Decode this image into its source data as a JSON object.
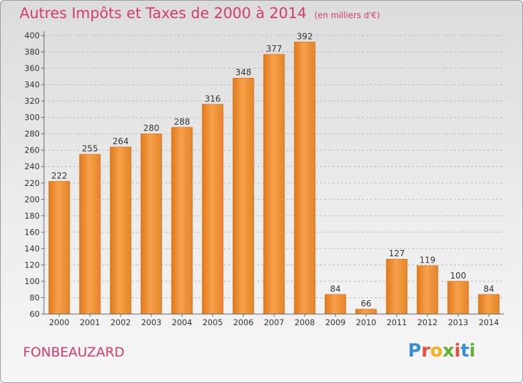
{
  "header": {
    "title": "Autres Impôts et Taxes de 2000 à 2014",
    "subtitle": "(en milliers d'€)"
  },
  "footer": {
    "commune": "FONBEAUZARD",
    "logo_text": "Proxiti",
    "logo_colors": [
      "#3a8fd4",
      "#e94b3c",
      "#f4b11a",
      "#62b033",
      "#e94b3c",
      "#3a8fd4",
      "#62b033"
    ]
  },
  "colors": {
    "bar_light": "#f7a04a",
    "bar_dark": "#df7a1f",
    "bar_stroke": "#cc6a12",
    "axis": "#666666",
    "grid": "#bbbbbb",
    "title": "#d53a6e"
  },
  "chart_data": {
    "type": "bar",
    "title": "Autres Impôts et Taxes de 2000 à 2014",
    "subtitle": "(en milliers d'€)",
    "xlabel": "",
    "ylabel": "",
    "categories": [
      "2000",
      "2001",
      "2002",
      "2003",
      "2004",
      "2005",
      "2006",
      "2007",
      "2008",
      "2009",
      "2010",
      "2011",
      "2012",
      "2013",
      "2014"
    ],
    "values": [
      222,
      255,
      264,
      280,
      288,
      316,
      348,
      377,
      392,
      84,
      66,
      127,
      119,
      100,
      84
    ],
    "ylim": [
      60,
      400
    ],
    "yticks": [
      60,
      80,
      100,
      120,
      140,
      160,
      180,
      200,
      220,
      240,
      260,
      280,
      300,
      320,
      340,
      360,
      380,
      400
    ],
    "grid": true,
    "legend": "none"
  }
}
